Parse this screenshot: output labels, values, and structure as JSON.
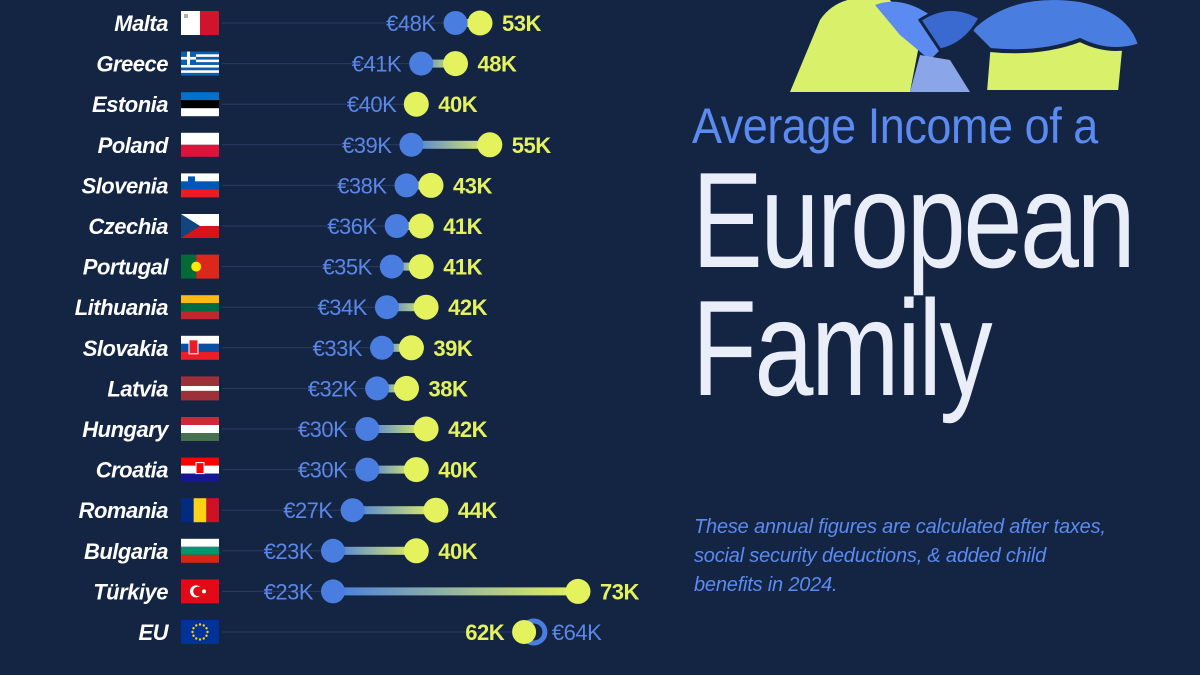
{
  "title": {
    "line1": "Average Income of a",
    "line2": "European",
    "line3": "Family"
  },
  "subtitle": "These annual figures are calculated after taxes, social security deductions, & added child benefits in 2024.",
  "colors": {
    "background": "#142544",
    "blue_series": "#4a7de0",
    "yellow_series": "#e4f25e",
    "eu_outline": "#4a7de0"
  },
  "chart_data": {
    "type": "dumbbell",
    "categories": [
      "Malta",
      "Greece",
      "Estonia",
      "Poland",
      "Slovenia",
      "Czechia",
      "Portugal",
      "Lithuania",
      "Slovakia",
      "Latvia",
      "Hungary",
      "Croatia",
      "Romania",
      "Bulgaria",
      "Türkiye",
      "EU"
    ],
    "series": [
      {
        "color": "#4a7de0",
        "values": [
          48,
          41,
          40,
          39,
          38,
          36,
          35,
          34,
          33,
          32,
          30,
          30,
          27,
          23,
          23,
          64
        ],
        "labels": [
          "€48K",
          "€41K",
          "€40K",
          "€39K",
          "€38K",
          "€36K",
          "€35K",
          "€34K",
          "€33K",
          "€32K",
          "€30K",
          "€30K",
          "€27K",
          "€23K",
          "€23K",
          "€64K"
        ]
      },
      {
        "color": "#e4f25e",
        "values": [
          53,
          48,
          40,
          55,
          43,
          41,
          41,
          42,
          39,
          38,
          42,
          40,
          44,
          40,
          73,
          62
        ],
        "labels": [
          "53K",
          "48K",
          "40K",
          "55K",
          "43K",
          "41K",
          "41K",
          "42K",
          "39K",
          "38K",
          "42K",
          "40K",
          "44K",
          "40K",
          "73K",
          "62K"
        ]
      }
    ],
    "flags": [
      "malta-flag",
      "greece-flag",
      "estonia-flag",
      "poland-flag",
      "slovenia-flag",
      "czechia-flag",
      "portugal-flag",
      "lithuania-flag",
      "slovakia-flag",
      "latvia-flag",
      "hungary-flag",
      "croatia-flag",
      "romania-flag",
      "bulgaria-flag",
      "turkiye-flag",
      "eu-flag"
    ],
    "legend": "none",
    "grid": false
  }
}
